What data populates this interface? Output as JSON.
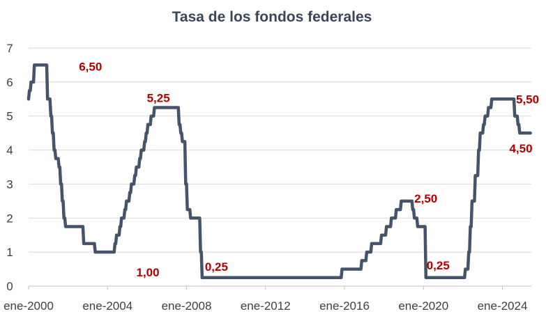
{
  "chart_data": {
    "type": "line",
    "title": "Tasa de los fondos federales",
    "xlabel": "",
    "ylabel": "",
    "ylim": [
      0,
      7
    ],
    "xlim": [
      "2000-01",
      "2025-01"
    ],
    "yticks": [
      "0",
      "1",
      "2",
      "3",
      "4",
      "5",
      "6",
      "7"
    ],
    "xticks": [
      {
        "label": "ene-2000",
        "date": "2000-01"
      },
      {
        "label": "ene-2004",
        "date": "2004-01"
      },
      {
        "label": "ene-2008",
        "date": "2008-01"
      },
      {
        "label": "ene-2012",
        "date": "2012-01"
      },
      {
        "label": "ene-2016",
        "date": "2016-01"
      },
      {
        "label": "ene-2020",
        "date": "2020-01"
      },
      {
        "label": "ene-2024",
        "date": "2024-01"
      }
    ],
    "grid": true,
    "line_color": "#44546a",
    "annotation_color": "#b00000",
    "series": [
      {
        "points": [
          [
            "2000-01",
            5.5
          ],
          [
            "2000-02",
            5.75
          ],
          [
            "2000-03",
            6.0
          ],
          [
            "2000-04",
            6.0
          ],
          [
            "2000-05",
            6.5
          ],
          [
            "2000-06",
            6.5
          ],
          [
            "2000-12",
            6.5
          ],
          [
            "2001-01",
            5.5
          ],
          [
            "2001-02",
            5.5
          ],
          [
            "2001-03",
            5.0
          ],
          [
            "2001-04",
            4.5
          ],
          [
            "2001-05",
            4.0
          ],
          [
            "2001-06",
            3.75
          ],
          [
            "2001-07",
            3.75
          ],
          [
            "2001-08",
            3.5
          ],
          [
            "2001-09",
            3.0
          ],
          [
            "2001-10",
            2.5
          ],
          [
            "2001-11",
            2.0
          ],
          [
            "2001-12",
            1.75
          ],
          [
            "2002-10",
            1.75
          ],
          [
            "2002-11",
            1.25
          ],
          [
            "2003-05",
            1.25
          ],
          [
            "2003-06",
            1.0
          ],
          [
            "2004-05",
            1.0
          ],
          [
            "2004-06",
            1.25
          ],
          [
            "2004-08",
            1.5
          ],
          [
            "2004-09",
            1.75
          ],
          [
            "2004-11",
            2.0
          ],
          [
            "2004-12",
            2.25
          ],
          [
            "2005-02",
            2.5
          ],
          [
            "2005-03",
            2.75
          ],
          [
            "2005-05",
            3.0
          ],
          [
            "2005-06",
            3.25
          ],
          [
            "2005-08",
            3.5
          ],
          [
            "2005-09",
            3.75
          ],
          [
            "2005-11",
            4.0
          ],
          [
            "2005-12",
            4.25
          ],
          [
            "2006-01",
            4.5
          ],
          [
            "2006-03",
            4.75
          ],
          [
            "2006-05",
            5.0
          ],
          [
            "2006-06",
            5.25
          ],
          [
            "2007-08",
            5.25
          ],
          [
            "2007-09",
            4.75
          ],
          [
            "2007-10",
            4.5
          ],
          [
            "2007-12",
            4.25
          ],
          [
            "2008-01",
            3.0
          ],
          [
            "2008-03",
            2.25
          ],
          [
            "2008-04",
            2.0
          ],
          [
            "2008-09",
            2.0
          ],
          [
            "2008-10",
            1.0
          ],
          [
            "2008-12",
            0.25
          ],
          [
            "2015-11",
            0.25
          ],
          [
            "2015-12",
            0.5
          ],
          [
            "2016-11",
            0.5
          ],
          [
            "2016-12",
            0.75
          ],
          [
            "2017-02",
            0.75
          ],
          [
            "2017-03",
            1.0
          ],
          [
            "2017-05",
            1.0
          ],
          [
            "2017-06",
            1.25
          ],
          [
            "2017-11",
            1.25
          ],
          [
            "2017-12",
            1.5
          ],
          [
            "2018-02",
            1.5
          ],
          [
            "2018-03",
            1.75
          ],
          [
            "2018-05",
            1.75
          ],
          [
            "2018-06",
            2.0
          ],
          [
            "2018-08",
            2.0
          ],
          [
            "2018-09",
            2.25
          ],
          [
            "2018-11",
            2.25
          ],
          [
            "2018-12",
            2.5
          ],
          [
            "2019-06",
            2.5
          ],
          [
            "2019-07",
            2.25
          ],
          [
            "2019-09",
            2.0
          ],
          [
            "2019-10",
            1.75
          ],
          [
            "2020-02",
            1.75
          ],
          [
            "2020-03",
            0.25
          ],
          [
            "2022-02",
            0.25
          ],
          [
            "2022-03",
            0.5
          ],
          [
            "2022-04",
            0.5
          ],
          [
            "2022-05",
            1.0
          ],
          [
            "2022-06",
            1.75
          ],
          [
            "2022-07",
            2.5
          ],
          [
            "2022-08",
            2.5
          ],
          [
            "2022-09",
            3.25
          ],
          [
            "2022-10",
            3.25
          ],
          [
            "2022-11",
            4.0
          ],
          [
            "2022-12",
            4.5
          ],
          [
            "2023-01",
            4.5
          ],
          [
            "2023-02",
            4.75
          ],
          [
            "2023-03",
            5.0
          ],
          [
            "2023-04",
            5.0
          ],
          [
            "2023-05",
            5.25
          ],
          [
            "2023-06",
            5.25
          ],
          [
            "2023-07",
            5.5
          ],
          [
            "2024-08",
            5.5
          ],
          [
            "2024-09",
            5.0
          ],
          [
            "2024-10",
            5.0
          ],
          [
            "2024-11",
            4.75
          ],
          [
            "2024-12",
            4.5
          ],
          [
            "2025-06",
            4.5
          ]
        ]
      }
    ],
    "annotations": [
      {
        "text": "6,50",
        "x": "2001-09",
        "y": 6.5
      },
      {
        "text": "1,00",
        "x": "2004-10",
        "y": 1.0
      },
      {
        "text": "5,25",
        "x": "2006-03",
        "y": 5.25
      },
      {
        "text": "0,25",
        "x": "2009-01",
        "y": 0.25
      },
      {
        "text": "2,50",
        "x": "2019-10",
        "y": 2.5
      },
      {
        "text": "0,25",
        "x": "2020-05",
        "y": 0.25
      },
      {
        "text": "5,50",
        "x": "2025-01",
        "y": 5.5
      },
      {
        "text": "4,50",
        "x": "2024-12",
        "y": 4.5
      }
    ]
  }
}
